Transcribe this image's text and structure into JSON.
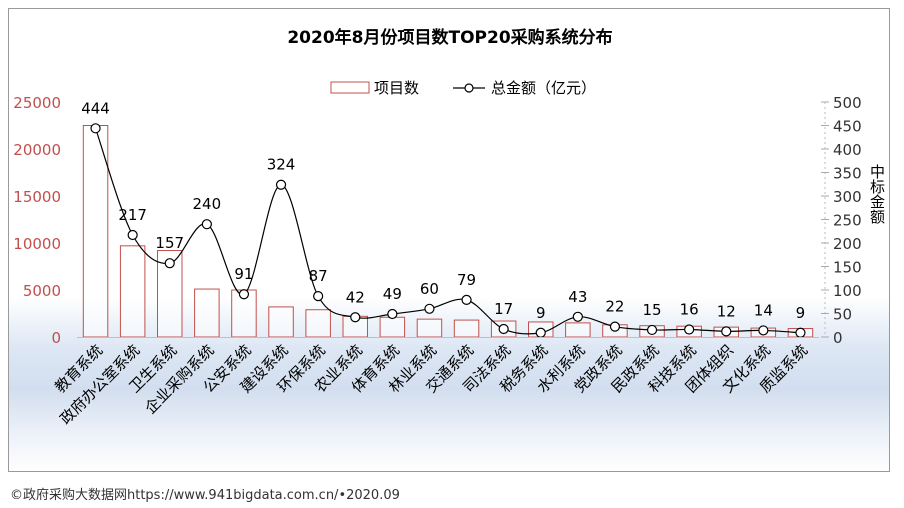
{
  "chart_data": {
    "type": "bar+line",
    "title": "2020年8月份项目数TOP20采购系统分布",
    "categories": [
      "教育系统",
      "政府办公室系统",
      "卫生系统",
      "企业采购系统",
      "公安系统",
      "建设系统",
      "环保系统",
      "农业系统",
      "体育系统",
      "林业系统",
      "交通系统",
      "司法系统",
      "税务系统",
      "水利系统",
      "党政系统",
      "民政系统",
      "科技系统",
      "团体组织",
      "文化系统",
      "质监系统"
    ],
    "series": [
      {
        "name": "项目数",
        "kind": "bar",
        "axis": "left",
        "color": "#c0504d",
        "values": [
          22500,
          9700,
          9200,
          5100,
          5000,
          3200,
          2900,
          2200,
          2100,
          1900,
          1800,
          1700,
          1600,
          1500,
          1300,
          1200,
          1150,
          1050,
          950,
          900
        ]
      },
      {
        "name": "总金额（亿元）",
        "kind": "line",
        "axis": "right",
        "color": "#000000",
        "values": [
          444,
          217,
          157,
          240,
          91,
          324,
          87,
          42,
          49,
          60,
          79,
          17,
          9,
          43,
          22,
          15,
          16,
          12,
          14,
          9
        ],
        "labels": [
          "444",
          "217",
          "157",
          "240",
          "91",
          "324",
          "87",
          "42",
          "49",
          "60",
          "79",
          "17",
          "9",
          "43",
          "22",
          "15",
          "16",
          "12",
          "14",
          "9"
        ]
      }
    ],
    "left_axis": {
      "ylim": [
        0,
        25000
      ],
      "ticks": [
        "0",
        "5000",
        "10000",
        "15000",
        "20000",
        "25000"
      ],
      "color": "#c0504d"
    },
    "right_axis": {
      "ylim": [
        0,
        500
      ],
      "ticks": [
        "0",
        "50",
        "100",
        "150",
        "200",
        "250",
        "300",
        "350",
        "400",
        "450",
        "500"
      ],
      "label": "中标金额",
      "color": "#333333"
    },
    "legend": {
      "position": "top",
      "items": [
        "项目数",
        "总金额（亿元）"
      ]
    },
    "grid": false
  },
  "footer": {
    "source": "©政府采购大数据网https://www.941bigdata.com.cn/•2020.09"
  }
}
